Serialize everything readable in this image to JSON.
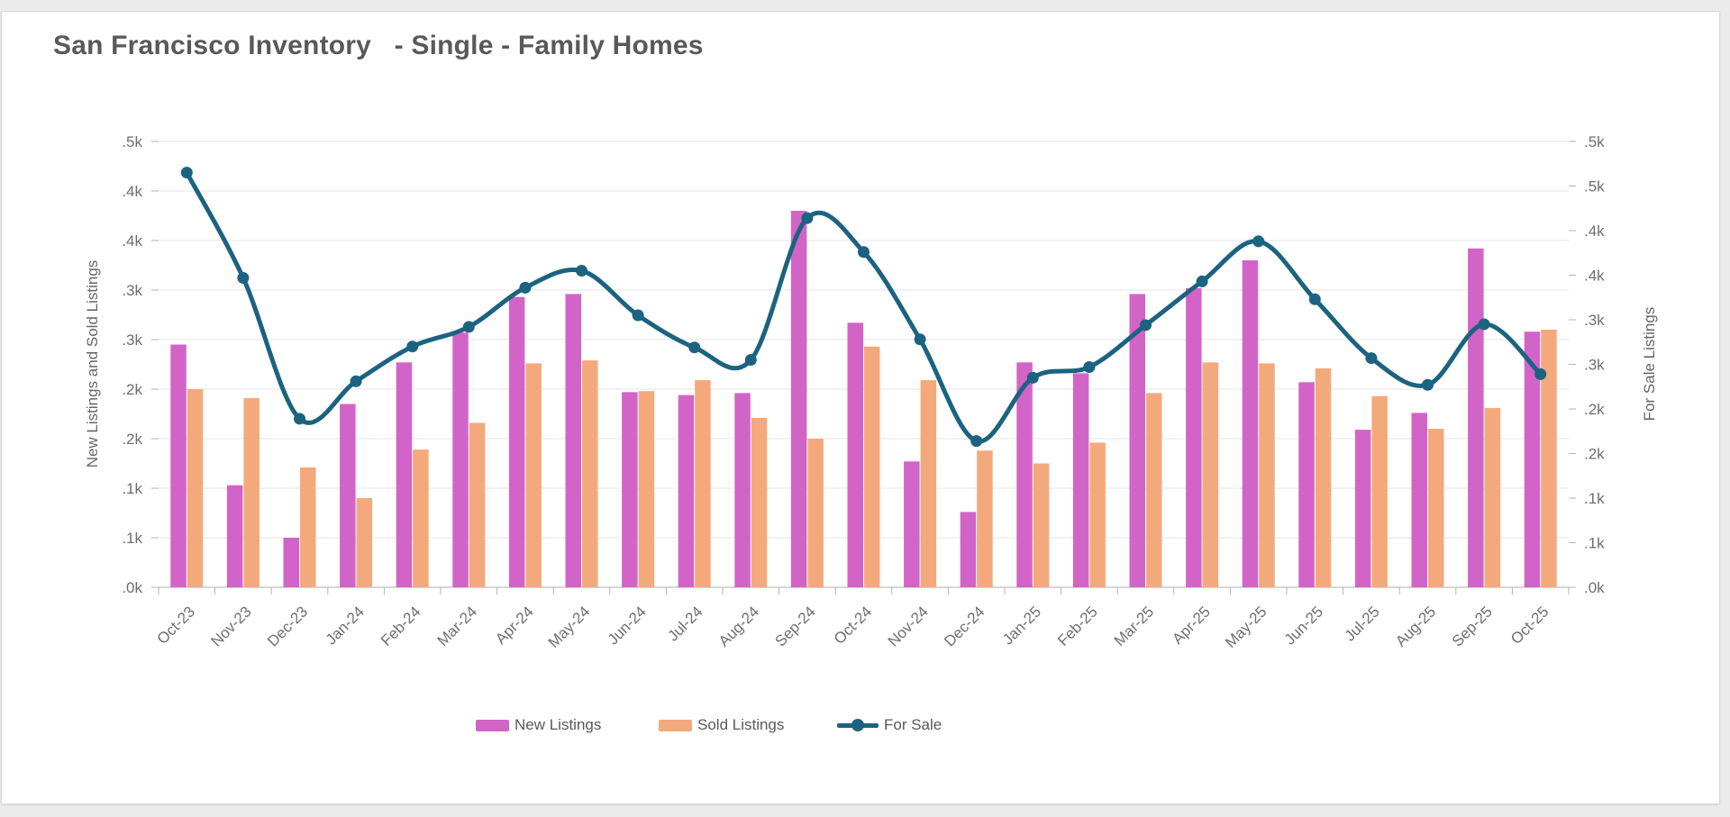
{
  "page": {
    "background": "#ebebeb",
    "card_background": "#ffffff",
    "card_border": "#d8d8d8"
  },
  "header": {
    "title": "San Francisco Inventory   - Single - Family Homes",
    "title_color": "#595959"
  },
  "chart_data": {
    "type": "combo-bar-line",
    "categories": [
      "Oct-23",
      "Nov-23",
      "Dec-23",
      "Jan-24",
      "Feb-24",
      "Mar-24",
      "Apr-24",
      "May-24",
      "Jun-24",
      "Jul-24",
      "Aug-24",
      "Sep-24",
      "Oct-24",
      "Nov-24",
      "Dec-24",
      "Jan-25",
      "Feb-25",
      "Mar-25",
      "Apr-25",
      "May-25",
      "Jun-25",
      "Jul-25",
      "Aug-25",
      "Sep-25",
      "Oct-25"
    ],
    "series": [
      {
        "name": "New Listings",
        "type": "bar",
        "axis": "left",
        "color": "#d264c8",
        "values": [
          245,
          103,
          50,
          185,
          227,
          257,
          293,
          296,
          197,
          194,
          196,
          380,
          267,
          127,
          76,
          227,
          216,
          296,
          302,
          330,
          207,
          159,
          176,
          342,
          258
        ]
      },
      {
        "name": "Sold Listings",
        "type": "bar",
        "axis": "left",
        "color": "#f4a97c",
        "values": [
          200,
          191,
          121,
          90,
          139,
          166,
          226,
          229,
          198,
          209,
          171,
          150,
          243,
          209,
          138,
          125,
          146,
          196,
          227,
          226,
          221,
          193,
          160,
          181,
          260
        ]
      },
      {
        "name": "For Sale",
        "type": "line",
        "axis": "right",
        "color": "#1b6380",
        "values": [
          465,
          347,
          189,
          231,
          270,
          292,
          336,
          355,
          305,
          269,
          255,
          414,
          376,
          278,
          164,
          235,
          247,
          294,
          343,
          388,
          323,
          257,
          227,
          295,
          239
        ]
      }
    ],
    "left_axis": {
      "title": "New Listings and Sold Listings",
      "min": 0,
      "max": 450,
      "tick_step": 50,
      "tick_labels_bottom_to_top": [
        ".0k",
        ".1k",
        ".1k",
        ".2k",
        ".2k",
        ".3k",
        ".3k",
        ".4k",
        ".4k",
        ".5k"
      ]
    },
    "right_axis": {
      "title": "For Sale  Listings",
      "min": 0,
      "max": 500,
      "tick_step": 50,
      "tick_labels_bottom_to_top": [
        ".0k",
        ".1k",
        ".1k",
        ".2k",
        ".2k",
        ".3k",
        ".3k",
        ".4k",
        ".4k",
        ".5k",
        ".5k"
      ]
    },
    "grid": true,
    "legend_position": "bottom",
    "text_colors": {
      "ticks": "#6e6e6e",
      "axis_titles": "#666666"
    },
    "grid_color": "#e4e4e4",
    "baseline_color": "#c9c9c9",
    "tick_mark_color": "#b3b3b3"
  }
}
